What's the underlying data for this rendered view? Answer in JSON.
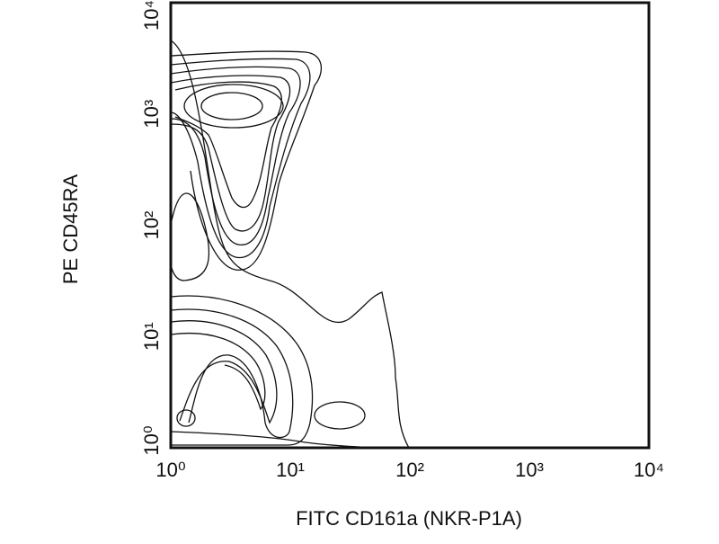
{
  "chart_data": {
    "type": "contour",
    "x_label": "FITC CD161a (NKR-P1A)",
    "y_label": "PE CD45RA",
    "x_scale": "log",
    "y_scale": "log",
    "xlim": [
      1,
      10000
    ],
    "ylim": [
      1,
      10000
    ],
    "xticks": [
      {
        "value": 1,
        "label": "10⁰"
      },
      {
        "value": 10,
        "label": "10¹"
      },
      {
        "value": 100,
        "label": "10²"
      },
      {
        "value": 1000,
        "label": "10³"
      },
      {
        "value": 10000,
        "label": "10⁴"
      }
    ],
    "yticks": [
      {
        "value": 1,
        "label": "10⁰"
      },
      {
        "value": 10,
        "label": "10¹"
      },
      {
        "value": 100,
        "label": "10²"
      },
      {
        "value": 1000,
        "label": "10³"
      },
      {
        "value": 10000,
        "label": "10⁴"
      }
    ]
  }
}
